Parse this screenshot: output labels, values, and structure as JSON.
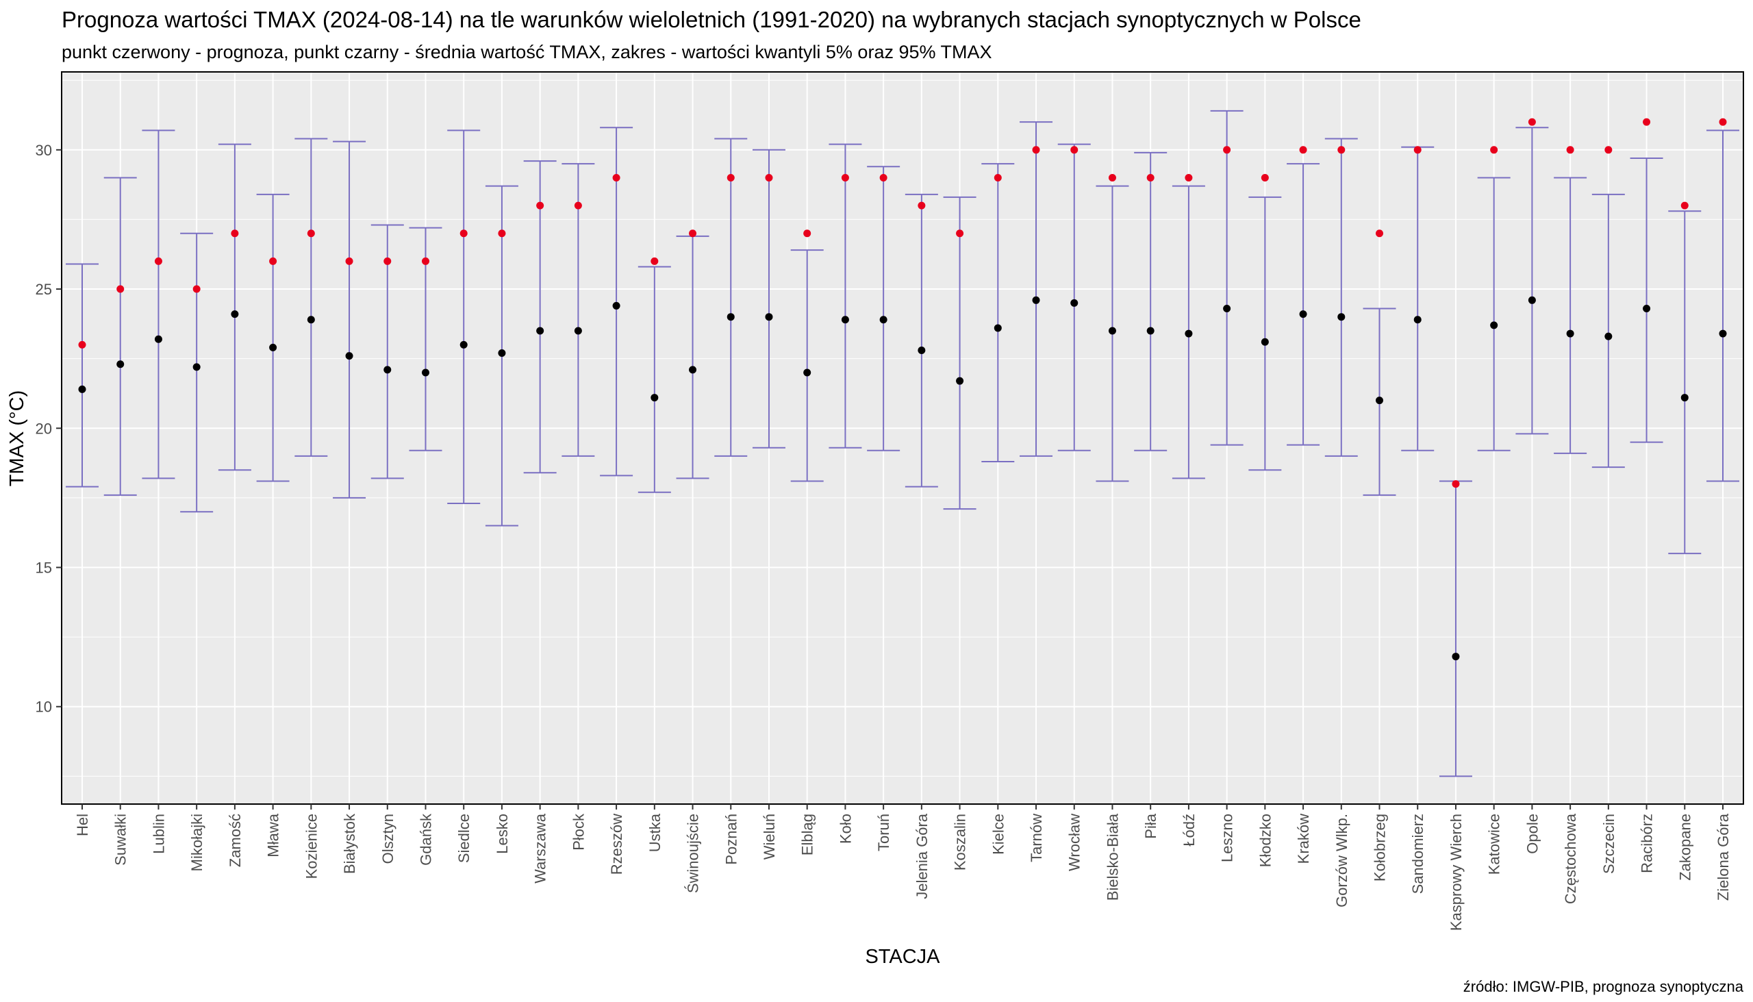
{
  "chart_data": {
    "type": "errorbar",
    "title": "Prognoza wartości TMAX (2024-08-14) na tle warunków wieloletnich (1991-2020) na wybranych stacjach synoptycznych w Polsce",
    "subtitle": "punkt czerwony - prognoza, punkt czarny - średnia wartość TMAX, zakres - wartości kwantyli 5% oraz 95% TMAX",
    "xlabel": "STACJA",
    "ylabel": "TMAX (°C)",
    "caption": "źródło: IMGW-PIB, prognoza synoptyczna",
    "ylim": [
      6.5,
      32.8
    ],
    "yticks": [
      10,
      15,
      20,
      25,
      30
    ],
    "grid": true,
    "colors": {
      "panel_background": "#ebebeb",
      "grid": "#ffffff",
      "range": "#7a6fc2",
      "forecast": "#e8001c",
      "mean": "#000000",
      "tick_text": "#4d4d4d"
    },
    "categories": [
      "Hel",
      "Suwałki",
      "Lublin",
      "Mikołajki",
      "Zamość",
      "Mława",
      "Kozienice",
      "Białystok",
      "Olsztyn",
      "Gdańsk",
      "Siedlce",
      "Lesko",
      "Warszawa",
      "Płock",
      "Rzeszów",
      "Ustka",
      "Świnoujście",
      "Poznań",
      "Wieluń",
      "Elbląg",
      "Koło",
      "Toruń",
      "Jelenia Góra",
      "Koszalin",
      "Kielce",
      "Tarnów",
      "Wrocław",
      "Bielsko-Biała",
      "Piła",
      "Łódź",
      "Leszno",
      "Kłodzko",
      "Kraków",
      "Gorzów Wlkp.",
      "Kołobrzeg",
      "Sandomierz",
      "Kasprowy Wierch",
      "Katowice",
      "Opole",
      "Częstochowa",
      "Szczecin",
      "Racibórz",
      "Zakopane",
      "Zielona Góra"
    ],
    "series": [
      {
        "name": "prognoza",
        "values": [
          23,
          25,
          26,
          25,
          27,
          26,
          27,
          26,
          26,
          26,
          27,
          27,
          28,
          28,
          29,
          26,
          27,
          29,
          29,
          27,
          29,
          29,
          28,
          27,
          29,
          30,
          30,
          29,
          29,
          29,
          30,
          29,
          30,
          30,
          27,
          30,
          18,
          30,
          31,
          30,
          30,
          31,
          28,
          31
        ]
      },
      {
        "name": "średnia wartość TMAX",
        "values": [
          21.4,
          22.3,
          23.2,
          22.2,
          24.1,
          22.9,
          23.9,
          22.6,
          22.1,
          22.0,
          23.0,
          22.7,
          23.5,
          23.5,
          24.4,
          21.1,
          22.1,
          24.0,
          24.0,
          22.0,
          23.9,
          23.9,
          22.8,
          21.7,
          23.6,
          24.6,
          24.5,
          23.5,
          23.5,
          23.4,
          24.3,
          23.1,
          24.1,
          24.0,
          21.0,
          23.9,
          11.8,
          23.7,
          24.6,
          23.4,
          23.3,
          24.3,
          21.1,
          23.4
        ]
      },
      {
        "name": "kwantyl 5%",
        "values": [
          17.9,
          17.6,
          18.2,
          17.0,
          18.5,
          18.1,
          19.0,
          17.5,
          18.2,
          19.2,
          17.3,
          16.5,
          18.4,
          19.0,
          18.3,
          17.7,
          18.2,
          19.0,
          19.3,
          18.1,
          19.3,
          19.2,
          17.9,
          17.1,
          18.8,
          19.0,
          19.2,
          18.1,
          19.2,
          18.2,
          19.4,
          18.5,
          19.4,
          19.0,
          17.6,
          19.2,
          7.5,
          19.2,
          19.8,
          19.1,
          18.6,
          19.5,
          15.5,
          18.1
        ]
      },
      {
        "name": "kwantyl 95%",
        "values": [
          25.9,
          29.0,
          30.7,
          27.0,
          30.2,
          28.4,
          30.4,
          30.3,
          27.3,
          27.2,
          30.7,
          28.7,
          29.6,
          29.5,
          30.8,
          25.8,
          26.9,
          30.4,
          30.0,
          26.4,
          30.2,
          29.4,
          28.4,
          28.3,
          29.5,
          31.0,
          30.2,
          28.7,
          29.9,
          28.7,
          31.4,
          28.3,
          29.5,
          30.4,
          24.3,
          30.1,
          18.1,
          29.0,
          30.8,
          29.0,
          28.4,
          29.7,
          27.8,
          30.7
        ]
      }
    ]
  }
}
